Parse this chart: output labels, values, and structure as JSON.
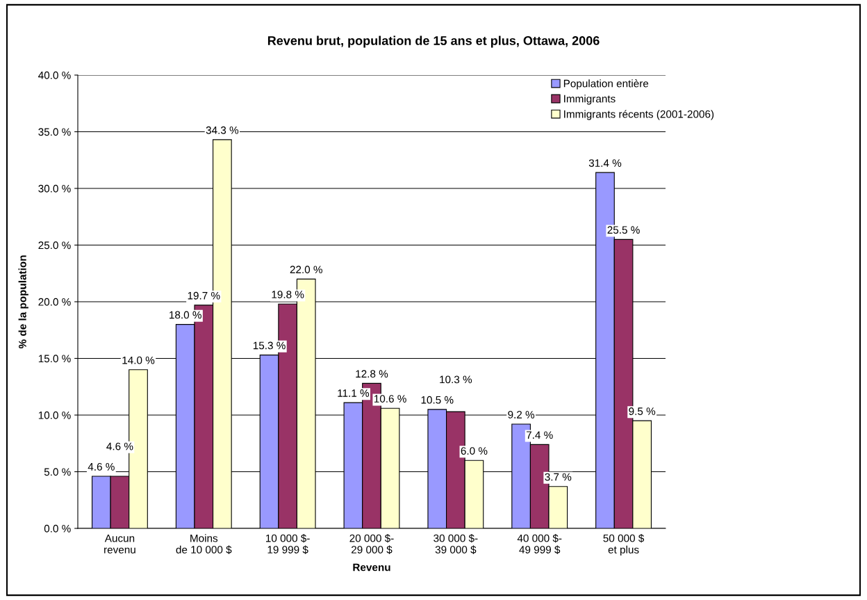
{
  "chart_data": {
    "type": "bar",
    "title": "Revenu brut, population de 15 ans et plus, Ottawa, 2006",
    "xlabel": "Revenu",
    "ylabel": "% de la population",
    "categories": [
      "Aucun\nrevenu",
      "Moins\nde 10 000 $",
      "10 000 $-\n19 999 $",
      "20 000 $-\n29 000 $",
      "30 000 $-\n39 000 $",
      "40 000 $-\n49 999 $",
      "50 000 $\net plus"
    ],
    "series": [
      {
        "name": "Population entière",
        "color": "#9999ff",
        "values": [
          4.6,
          18.0,
          15.3,
          11.1,
          10.5,
          9.2,
          31.4
        ],
        "value_labels": [
          "4.6 %",
          "18.0 %",
          "15.3 %",
          "11.1 %",
          "10.5 %",
          "9.2 %",
          "31.4 %"
        ]
      },
      {
        "name": "Immigrants",
        "color": "#993366",
        "values": [
          4.6,
          19.7,
          19.8,
          12.8,
          10.3,
          7.4,
          25.5
        ],
        "value_labels": [
          "4.6 %",
          "19.7 %",
          "19.8 %",
          "12.8 %",
          "10.3 %",
          "7.4 %",
          "25.5 %"
        ]
      },
      {
        "name": "Immigrants récents (2001-2006)",
        "color": "#ffffcc",
        "values": [
          14.0,
          34.3,
          22.0,
          10.6,
          6.0,
          3.7,
          9.5
        ],
        "value_labels": [
          "14.0 %",
          "34.3 %",
          "22.0 %",
          "10.6 %",
          "6.0 %",
          "3.7 %",
          "9.5 %"
        ]
      }
    ],
    "ylim": [
      0,
      40
    ],
    "yticks": [
      {
        "value": 0,
        "label": "0.0 %"
      },
      {
        "value": 5,
        "label": "5.0 %"
      },
      {
        "value": 10,
        "label": "10.0 %"
      },
      {
        "value": 15,
        "label": "15.0 %"
      },
      {
        "value": 20,
        "label": "20.0 %"
      },
      {
        "value": 25,
        "label": "25.0 %"
      },
      {
        "value": 30,
        "label": "30.0 %"
      },
      {
        "value": 35,
        "label": "35.0 %"
      },
      {
        "value": 40,
        "label": "40.0 %"
      }
    ],
    "grid": "y",
    "legend": "top right"
  }
}
